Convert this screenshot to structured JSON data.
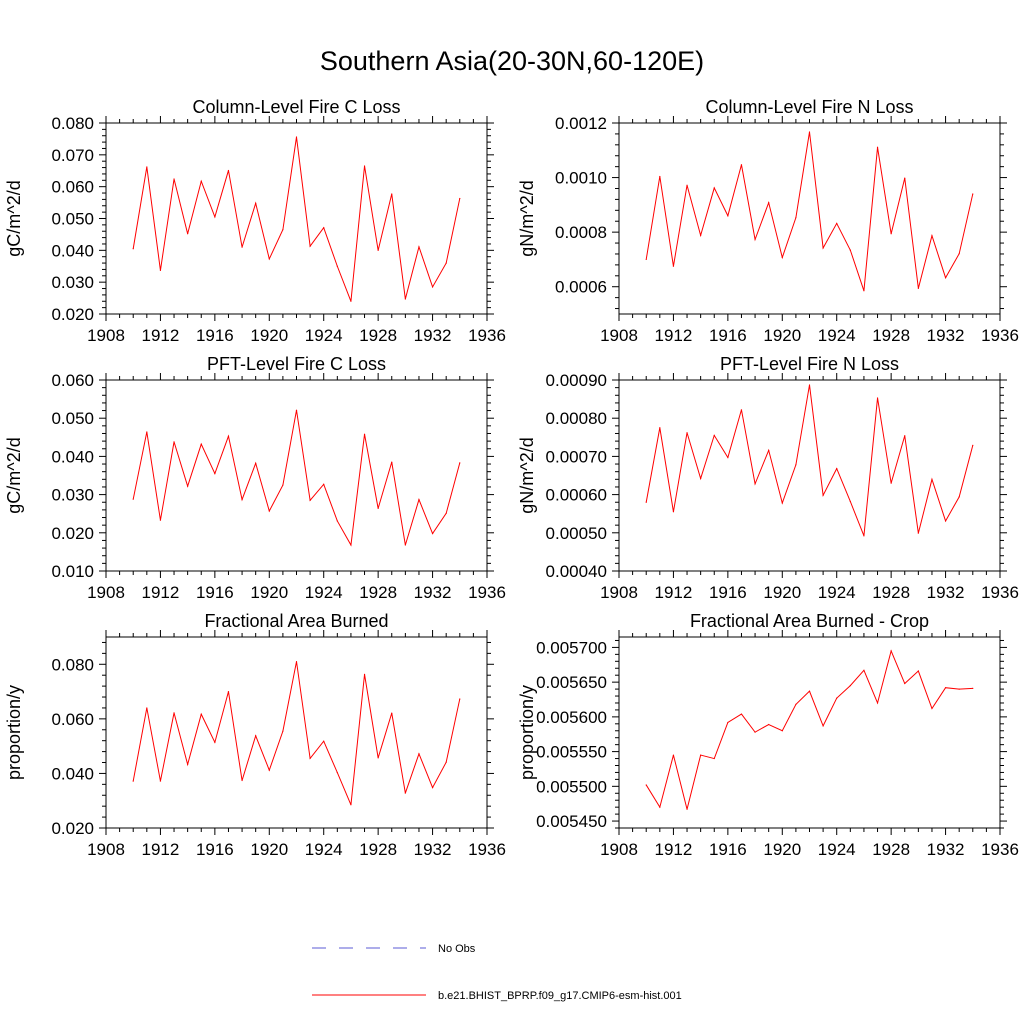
{
  "figure": {
    "title": "Southern Asia(20-30N,60-120E)"
  },
  "legend": {
    "items": [
      {
        "label": "No Obs",
        "color": "#5b5bd6",
        "style": "dashed"
      },
      {
        "label": "b.e21.BHIST_BPRP.f09_g17.CMIP6-esm-hist.001",
        "color": "#ff0000",
        "style": "solid"
      }
    ]
  },
  "chart_data": [
    {
      "type": "line",
      "title": "Column-Level Fire C Loss",
      "xlabel": "",
      "ylabel": "gC/m^2/d",
      "xlim": [
        1908,
        1936
      ],
      "ylim": [
        0.02,
        0.08
      ],
      "xticks": [
        "1908",
        "1912",
        "1916",
        "1920",
        "1924",
        "1928",
        "1932",
        "1936"
      ],
      "yticks": [
        "0.020",
        "0.030",
        "0.040",
        "0.050",
        "0.060",
        "0.070",
        "0.080"
      ],
      "x": [
        1910,
        1911,
        1912,
        1913,
        1914,
        1915,
        1916,
        1917,
        1918,
        1919,
        1920,
        1921,
        1922,
        1923,
        1924,
        1925,
        1926,
        1927,
        1928,
        1929,
        1930,
        1931,
        1932,
        1933,
        1934
      ],
      "series": [
        {
          "name": "b.e21.BHIST_BPRP.f09_g17.CMIP6-esm-hist.001",
          "color": "#ff0000",
          "values": [
            0.0405,
            0.0662,
            0.0337,
            0.0624,
            0.0452,
            0.0617,
            0.0505,
            0.0651,
            0.041,
            0.0548,
            0.0373,
            0.0465,
            0.0756,
            0.0413,
            0.0471,
            0.035,
            0.024,
            0.0665,
            0.04,
            0.0577,
            0.0247,
            0.0411,
            0.0285,
            0.036,
            0.0563
          ]
        }
      ]
    },
    {
      "type": "line",
      "title": "Column-Level Fire N Loss",
      "xlabel": "",
      "ylabel": "gN/m^2/d",
      "xlim": [
        1908,
        1936
      ],
      "ylim": [
        0.0005,
        0.0012
      ],
      "xticks": [
        "1908",
        "1912",
        "1916",
        "1920",
        "1924",
        "1928",
        "1932",
        "1936"
      ],
      "yticks": [
        "0.0006",
        "0.0008",
        "0.0010",
        "0.0012"
      ],
      "x": [
        1910,
        1911,
        1912,
        1913,
        1914,
        1915,
        1916,
        1917,
        1918,
        1919,
        1920,
        1921,
        1922,
        1923,
        1924,
        1925,
        1926,
        1927,
        1928,
        1929,
        1930,
        1931,
        1932,
        1933,
        1934
      ],
      "series": [
        {
          "name": "b.e21.BHIST_BPRP.f09_g17.CMIP6-esm-hist.001",
          "color": "#ff0000",
          "values": [
            0.0007,
            0.001004,
            0.000675,
            0.000972,
            0.000788,
            0.000962,
            0.00086,
            0.001047,
            0.000773,
            0.000908,
            0.000707,
            0.000853,
            0.001167,
            0.000742,
            0.000832,
            0.000734,
            0.000585,
            0.001111,
            0.000794,
            0.000998,
            0.000594,
            0.000787,
            0.000633,
            0.000721,
            0.00094
          ]
        }
      ]
    },
    {
      "type": "line",
      "title": "PFT-Level Fire C Loss",
      "xlabel": "",
      "ylabel": "gC/m^2/d",
      "xlim": [
        1908,
        1936
      ],
      "ylim": [
        0.01,
        0.06
      ],
      "xticks": [
        "1908",
        "1912",
        "1916",
        "1920",
        "1924",
        "1928",
        "1932",
        "1936"
      ],
      "yticks": [
        "0.010",
        "0.020",
        "0.030",
        "0.040",
        "0.050",
        "0.060"
      ],
      "x": [
        1910,
        1911,
        1912,
        1913,
        1914,
        1915,
        1916,
        1917,
        1918,
        1919,
        1920,
        1921,
        1922,
        1923,
        1924,
        1925,
        1926,
        1927,
        1928,
        1929,
        1930,
        1931,
        1932,
        1933,
        1934
      ],
      "series": [
        {
          "name": "b.e21.BHIST_BPRP.f09_g17.CMIP6-esm-hist.001",
          "color": "#ff0000",
          "values": [
            0.0288,
            0.0464,
            0.0233,
            0.0438,
            0.0322,
            0.0432,
            0.0355,
            0.0453,
            0.0287,
            0.0382,
            0.0257,
            0.0325,
            0.0521,
            0.0285,
            0.0327,
            0.0231,
            0.0168,
            0.0458,
            0.0264,
            0.0385,
            0.0168,
            0.0287,
            0.0198,
            0.0251,
            0.0383
          ]
        }
      ]
    },
    {
      "type": "line",
      "title": "PFT-Level Fire N Loss",
      "xlabel": "",
      "ylabel": "gN/m^2/d",
      "xlim": [
        1908,
        1936
      ],
      "ylim": [
        0.0004,
        0.0009
      ],
      "xticks": [
        "1908",
        "1912",
        "1916",
        "1920",
        "1924",
        "1928",
        "1932",
        "1936"
      ],
      "yticks": [
        "0.00040",
        "0.00050",
        "0.00060",
        "0.00070",
        "0.00080",
        "0.00090"
      ],
      "x": [
        1910,
        1911,
        1912,
        1913,
        1914,
        1915,
        1916,
        1917,
        1918,
        1919,
        1920,
        1921,
        1922,
        1923,
        1924,
        1925,
        1926,
        1927,
        1928,
        1929,
        1930,
        1931,
        1932,
        1933,
        1934
      ],
      "series": [
        {
          "name": "b.e21.BHIST_BPRP.f09_g17.CMIP6-esm-hist.001",
          "color": "#ff0000",
          "values": [
            0.00058,
            0.000775,
            0.000555,
            0.000762,
            0.000642,
            0.000755,
            0.000697,
            0.000822,
            0.000628,
            0.000716,
            0.000578,
            0.000678,
            0.000887,
            0.000598,
            0.000668,
            0.000582,
            0.000492,
            0.000853,
            0.00063,
            0.000754,
            0.000499,
            0.00064,
            0.000531,
            0.000594,
            0.000729
          ]
        }
      ]
    },
    {
      "type": "line",
      "title": "Fractional Area Burned",
      "xlabel": "",
      "ylabel": "proportion/y",
      "xlim": [
        1908,
        1936
      ],
      "ylim": [
        0.02,
        0.09
      ],
      "xticks": [
        "1908",
        "1912",
        "1916",
        "1920",
        "1924",
        "1928",
        "1932",
        "1936"
      ],
      "yticks": [
        "0.020",
        "0.040",
        "0.060",
        "0.080"
      ],
      "x": [
        1910,
        1911,
        1912,
        1913,
        1914,
        1915,
        1916,
        1917,
        1918,
        1919,
        1920,
        1921,
        1922,
        1923,
        1924,
        1925,
        1926,
        1927,
        1928,
        1929,
        1930,
        1931,
        1932,
        1933,
        1934
      ],
      "series": [
        {
          "name": "b.e21.BHIST_BPRP.f09_g17.CMIP6-esm-hist.001",
          "color": "#ff0000",
          "values": [
            0.0372,
            0.064,
            0.0372,
            0.0622,
            0.0433,
            0.0617,
            0.0514,
            0.07,
            0.0374,
            0.0538,
            0.0412,
            0.0555,
            0.081,
            0.0455,
            0.0518,
            0.0403,
            0.0285,
            0.0763,
            0.0457,
            0.0621,
            0.0328,
            0.0472,
            0.0348,
            0.0441,
            0.0673
          ]
        }
      ]
    },
    {
      "type": "line",
      "title": "Fractional Area Burned - Crop",
      "xlabel": "",
      "ylabel": "proportion/y",
      "xlim": [
        1908,
        1936
      ],
      "ylim": [
        0.00544,
        0.005715
      ],
      "xticks": [
        "1908",
        "1912",
        "1916",
        "1920",
        "1924",
        "1928",
        "1932",
        "1936"
      ],
      "yticks": [
        "0.005450",
        "0.005500",
        "0.005550",
        "0.005600",
        "0.005650",
        "0.005700"
      ],
      "x": [
        1910,
        1911,
        1912,
        1913,
        1914,
        1915,
        1916,
        1917,
        1918,
        1919,
        1920,
        1921,
        1922,
        1923,
        1924,
        1925,
        1926,
        1927,
        1928,
        1929,
        1930,
        1931,
        1932,
        1933,
        1934
      ],
      "series": [
        {
          "name": "b.e21.BHIST_BPRP.f09_g17.CMIP6-esm-hist.001",
          "color": "#ff0000",
          "values": [
            0.005502,
            0.00547,
            0.005545,
            0.005467,
            0.005545,
            0.00554,
            0.005592,
            0.005604,
            0.005578,
            0.005589,
            0.00558,
            0.005618,
            0.005637,
            0.005587,
            0.005627,
            0.005645,
            0.005667,
            0.00562,
            0.005695,
            0.005648,
            0.005666,
            0.005612,
            0.005642,
            0.00564,
            0.005641
          ]
        }
      ]
    }
  ]
}
